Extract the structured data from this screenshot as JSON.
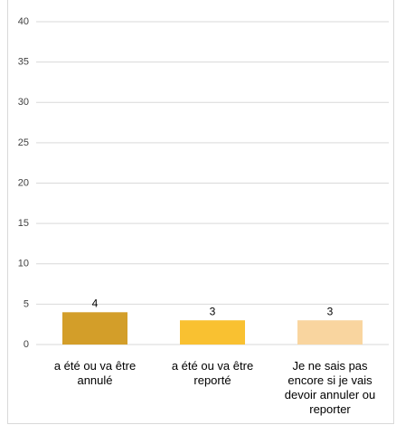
{
  "chart_data": {
    "type": "bar",
    "categories": [
      "a été ou va être annulé",
      "a été ou va être reporté",
      "Je ne sais pas encore si je vais devoir annuler ou reporter"
    ],
    "values": [
      4,
      3,
      3
    ],
    "colors": [
      "#d39e29",
      "#f9c131",
      "#f9d59f"
    ],
    "ylim": [
      0,
      40
    ],
    "yticks": [
      0,
      5,
      10,
      15,
      20,
      25,
      30,
      35,
      40
    ],
    "grid": true,
    "data_labels": true
  }
}
